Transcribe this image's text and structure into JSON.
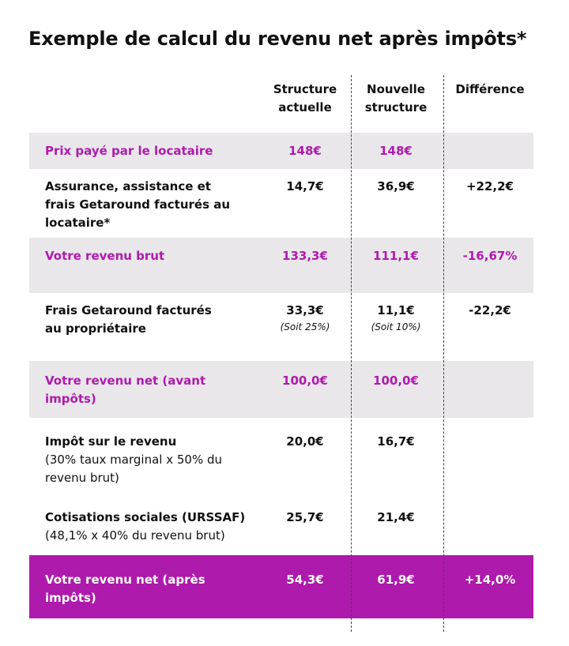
{
  "title": "Exemple de calcul du revenu net après impôts*",
  "headers": {
    "current": "Structure actuelle",
    "new": "Nouvelle structure",
    "diff": "Différence"
  },
  "rows": [
    {
      "label": "Prix payé par le locataire",
      "current": "148€",
      "new": "148€",
      "diff": ""
    },
    {
      "label": "Assurance, assistance et frais Getaround facturés au locataire*",
      "current": "14,7€",
      "new": "36,9€",
      "diff": "+22,2€"
    },
    {
      "label": "Votre revenu brut",
      "current": "133,3€",
      "new": "111,1€",
      "diff": "-16,67%"
    },
    {
      "label": "Frais Getaround facturés au propriétaire",
      "current": "33,3€",
      "current_note": "(Soit 25%)",
      "new": "11,1€",
      "new_note": "(Soit 10%)",
      "diff": "-22,2€"
    },
    {
      "label": "Votre revenu net (avant impôts)",
      "current": "100,0€",
      "new": "100,0€",
      "diff": ""
    },
    {
      "label": "Impôt sur le revenu",
      "sublabel": "(30% taux marginal x 50% du revenu brut)",
      "current": "20,0€",
      "new": "16,7€",
      "diff": ""
    },
    {
      "label": "Cotisations sociales (URSSAF)",
      "sublabel": "(48,1% x 40% du revenu brut)",
      "current": "25,7€",
      "new": "21,4€",
      "diff": ""
    },
    {
      "label": "Votre revenu net (après impôts)",
      "current": "54,3€",
      "new": "61,9€",
      "diff": "+14,0%"
    }
  ],
  "colors": {
    "accent": "#ae1aac",
    "highlight_text": "#b01aae",
    "grey_band": "#e9e7ea"
  }
}
